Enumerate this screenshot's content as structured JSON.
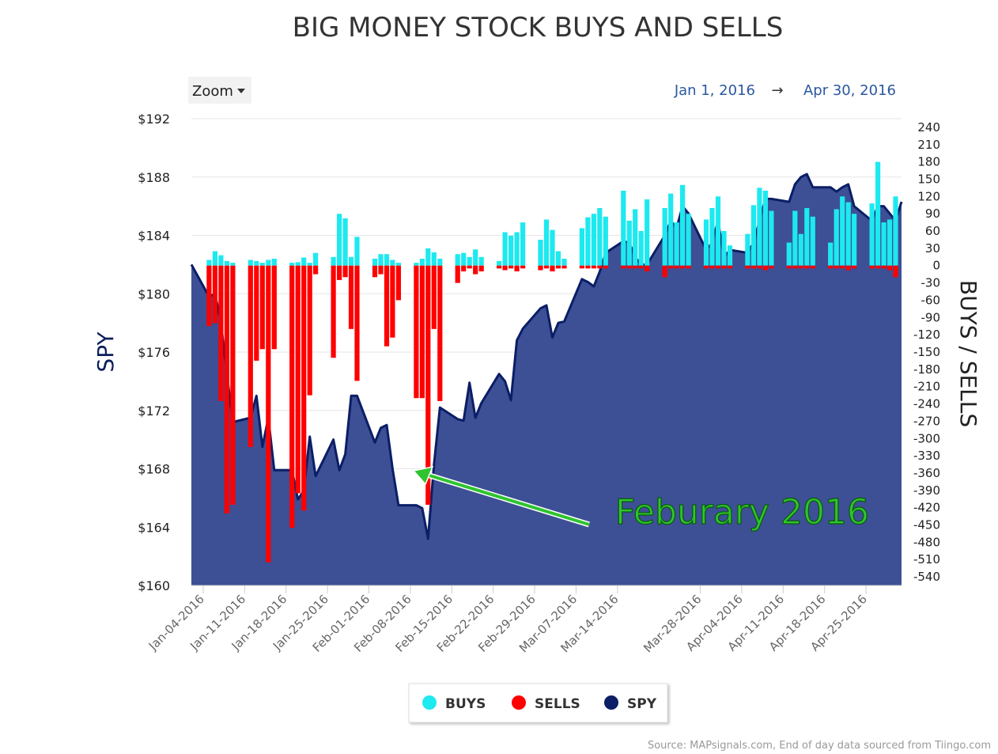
{
  "title": "BIG MONEY STOCK BUYS AND SELLS",
  "zoom": {
    "label": "Zoom"
  },
  "date_range": {
    "from": "Jan 1, 2016",
    "arrow": "→",
    "to": "Apr 30, 2016"
  },
  "annotation": {
    "text": "Feburary 2016"
  },
  "source": "Source: MAPsignals.com, End of day data sourced from Tiingo.com",
  "colors": {
    "buys": "#1de9f0",
    "sells": "#ff0000",
    "spy_line": "#0b1e66",
    "spy_fill": "#3d4f95",
    "annotation": "#2fc42f"
  },
  "chart_data": {
    "type": "bar",
    "title": "BIG MONEY STOCK BUYS AND SELLS",
    "left_axis": {
      "title": "SPY",
      "ticks": [
        "$160",
        "$164",
        "$168",
        "$172",
        "$176",
        "$180",
        "$184",
        "$188",
        "$192"
      ],
      "min": 160,
      "max": 192
    },
    "right_axis": {
      "title": "BUYS / SELLS",
      "ticks": [
        "240",
        "210",
        "180",
        "150",
        "120",
        "90",
        "60",
        "30",
        "0",
        "-30",
        "-60",
        "-90",
        "-120",
        "-150",
        "-180",
        "-210",
        "-240",
        "-270",
        "-300",
        "-330",
        "-360",
        "-390",
        "-420",
        "-450",
        "-480",
        "-510",
        "-540"
      ],
      "min": -555,
      "max": 255
    },
    "x_ticks": [
      "Jan-04-2016",
      "Jan-11-2016",
      "Jan-18-2016",
      "Jan-25-2016",
      "Feb-01-2016",
      "Feb-08-2016",
      "Feb-15-2016",
      "Feb-22-2016",
      "Feb-29-2016",
      "Mar-07-2016",
      "Mar-14-2016",
      "Mar-28-2016",
      "Apr-04-2016",
      "Apr-11-2016",
      "Apr-18-2016",
      "Apr-25-2016"
    ],
    "x_tick_days": [
      3,
      10,
      17,
      24,
      31,
      38,
      45,
      52,
      59,
      66,
      73,
      87,
      94,
      101,
      108,
      115
    ],
    "x_day_range": [
      1,
      121
    ],
    "legend": [
      {
        "name": "BUYS"
      },
      {
        "name": "SELLS"
      },
      {
        "name": "SPY"
      }
    ],
    "bar_days": [
      4,
      5,
      6,
      7,
      8,
      11,
      12,
      13,
      14,
      15,
      18,
      19,
      20,
      21,
      22,
      25,
      26,
      27,
      28,
      29,
      32,
      33,
      34,
      35,
      36,
      39,
      40,
      41,
      42,
      43,
      46,
      47,
      48,
      49,
      50,
      53,
      54,
      55,
      56,
      57,
      60,
      61,
      62,
      63,
      64,
      67,
      68,
      69,
      70,
      71,
      74,
      75,
      76,
      77,
      78,
      81,
      82,
      83,
      84,
      85,
      88,
      89,
      90,
      91,
      92,
      95,
      96,
      97,
      98,
      99,
      102,
      103,
      104,
      105,
      106,
      109,
      110,
      111,
      112,
      113,
      116,
      117,
      118,
      119,
      120
    ],
    "buys": [
      10,
      25,
      18,
      8,
      5,
      10,
      8,
      5,
      10,
      12,
      5,
      6,
      14,
      5,
      22,
      15,
      90,
      82,
      15,
      50,
      12,
      20,
      20,
      10,
      5,
      5,
      12,
      30,
      23,
      12,
      20,
      22,
      15,
      28,
      15,
      8,
      58,
      52,
      58,
      75,
      45,
      80,
      62,
      25,
      12,
      65,
      84,
      90,
      100,
      85,
      130,
      78,
      98,
      60,
      115,
      100,
      125,
      75,
      140,
      90,
      80,
      100,
      120,
      60,
      35,
      55,
      105,
      135,
      130,
      95,
      40,
      95,
      55,
      100,
      85,
      40,
      98,
      120,
      110,
      90,
      108,
      180,
      75,
      80,
      120
    ],
    "sells": [
      -105,
      -100,
      -235,
      -430,
      -415,
      -315,
      -165,
      -145,
      -515,
      -145,
      -455,
      -395,
      -425,
      -225,
      -15,
      -160,
      -25,
      -20,
      -110,
      -200,
      -20,
      -15,
      -140,
      -125,
      -60,
      -230,
      -230,
      -415,
      -110,
      -235,
      -30,
      -10,
      -5,
      -15,
      -10,
      -5,
      -8,
      -5,
      -10,
      -5,
      -8,
      -5,
      -10,
      -5,
      -5,
      -5,
      -5,
      -5,
      -5,
      -5,
      -5,
      -5,
      -5,
      -5,
      -10,
      -20,
      -5,
      -5,
      -5,
      -5,
      -5,
      -5,
      -5,
      -5,
      -5,
      -5,
      -5,
      -5,
      -8,
      -5,
      -5,
      -5,
      -5,
      -5,
      -5,
      -5,
      -5,
      -5,
      -8,
      -5,
      -5,
      -5,
      -5,
      -8,
      -20
    ],
    "spy": {
      "days": [
        1,
        4,
        5,
        6,
        7,
        8,
        11,
        12,
        13,
        14,
        15,
        18,
        19,
        20,
        21,
        22,
        25,
        26,
        27,
        28,
        29,
        32,
        33,
        34,
        35,
        36,
        39,
        40,
        41,
        42,
        43,
        46,
        47,
        48,
        49,
        50,
        53,
        54,
        55,
        56,
        57,
        60,
        61,
        62,
        63,
        64,
        67,
        68,
        69,
        70,
        71,
        74,
        75,
        76,
        77,
        78,
        81,
        82,
        83,
        84,
        85,
        88,
        89,
        90,
        91,
        92,
        95,
        96,
        97,
        98,
        99,
        102,
        103,
        104,
        105,
        106,
        109,
        110,
        111,
        112,
        113,
        116,
        117,
        118,
        119,
        120,
        121
      ],
      "values": [
        182.0,
        179.8,
        180.0,
        178.0,
        174.5,
        171.2,
        171.5,
        173.0,
        169.5,
        171.5,
        167.9,
        167.9,
        165.9,
        166.5,
        170.2,
        167.5,
        170.0,
        167.9,
        169.0,
        173.0,
        173.0,
        169.8,
        170.8,
        171.0,
        168.0,
        165.5,
        165.5,
        165.3,
        163.2,
        168.3,
        172.2,
        171.4,
        171.3,
        173.9,
        171.5,
        172.5,
        174.5,
        174.0,
        172.7,
        176.8,
        177.6,
        179.0,
        179.2,
        177.0,
        178.0,
        178.1,
        181.0,
        180.8,
        180.5,
        181.5,
        182.8,
        183.6,
        183.5,
        182.5,
        182.0,
        182.0,
        184.0,
        185.0,
        184.5,
        186.0,
        185.5,
        183.0,
        183.5,
        185.0,
        182.5,
        183.0,
        182.8,
        183.5,
        185.0,
        186.5,
        186.5,
        186.3,
        187.5,
        188.0,
        188.2,
        187.3,
        187.3,
        187.0,
        187.3,
        187.5,
        186.0,
        185.0,
        186.0,
        186.0,
        185.5,
        185.0,
        186.3
      ]
    }
  }
}
